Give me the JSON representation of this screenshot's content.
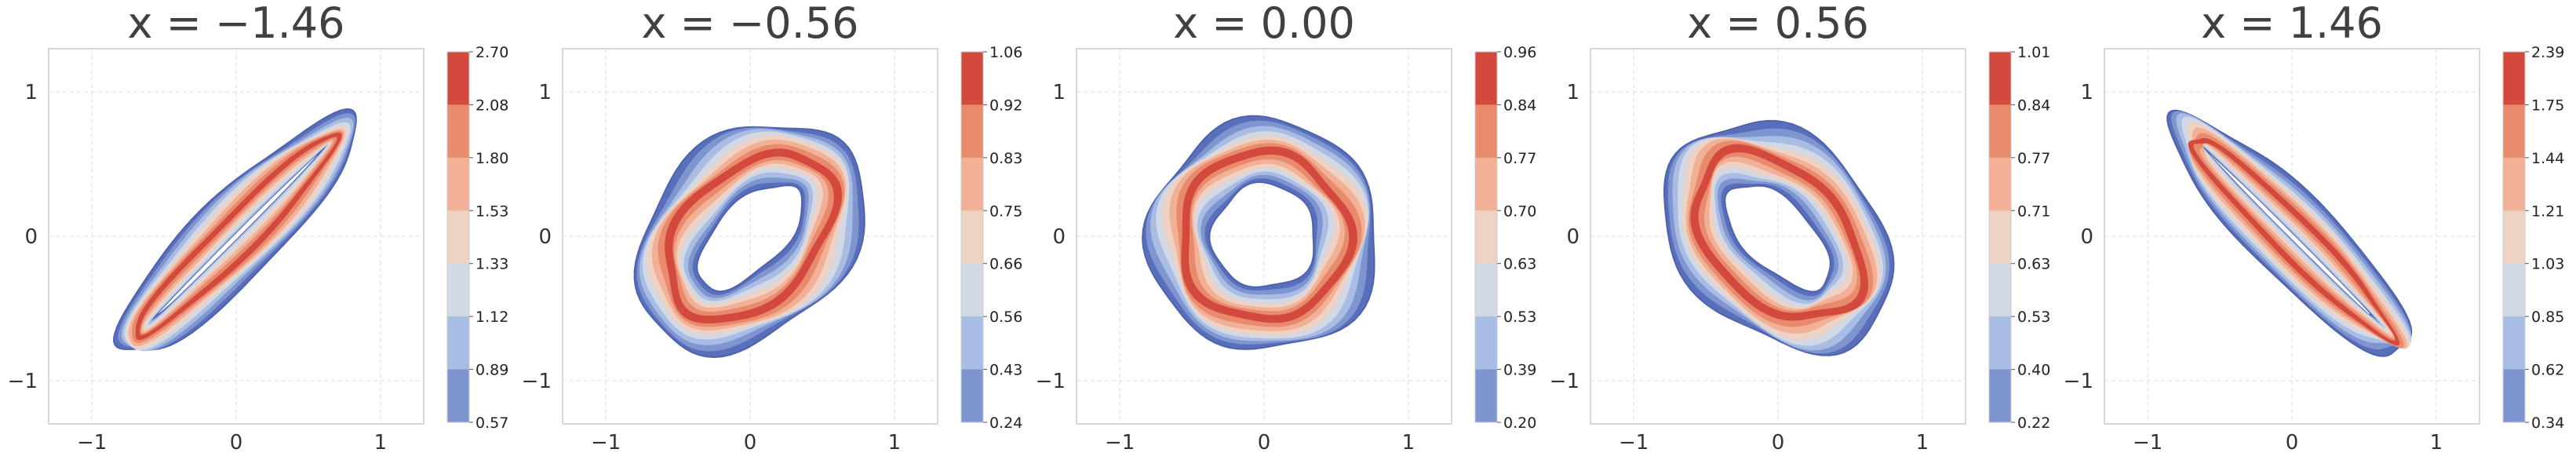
{
  "chart_data": [
    {
      "type": "contour",
      "title": "x = −1.46",
      "title_value": -1.46,
      "x_ticks": [
        "−1",
        "0",
        "1"
      ],
      "y_ticks": [
        "−1",
        "0",
        "1"
      ],
      "xlim": [
        -1.3,
        1.3
      ],
      "ylim": [
        -1.3,
        1.3
      ],
      "grid": true,
      "shape": {
        "kind": "stretched-ring",
        "angle_deg": 45,
        "major": 0.98,
        "minor": 0.13
      },
      "colorbar_levels": [
        "2.70",
        "2.08",
        "1.80",
        "1.53",
        "1.33",
        "1.12",
        "0.89",
        "0.57"
      ]
    },
    {
      "type": "contour",
      "title": "x = −0.56",
      "title_value": -0.56,
      "x_ticks": [
        "−1",
        "0",
        "1"
      ],
      "y_ticks": [
        "−1",
        "0",
        "1"
      ],
      "xlim": [
        -1.3,
        1.3
      ],
      "ylim": [
        -1.3,
        1.3
      ],
      "grid": true,
      "shape": {
        "kind": "ring",
        "angle_deg": 45,
        "major": 0.68,
        "minor": 0.45
      },
      "colorbar_levels": [
        "1.06",
        "0.92",
        "0.83",
        "0.75",
        "0.66",
        "0.56",
        "0.43",
        "0.24"
      ]
    },
    {
      "type": "contour",
      "title": "x = 0.00",
      "title_value": 0.0,
      "x_ticks": [
        "−1",
        "0",
        "1"
      ],
      "y_ticks": [
        "−1",
        "0",
        "1"
      ],
      "xlim": [
        -1.3,
        1.3
      ],
      "ylim": [
        -1.3,
        1.3
      ],
      "grid": true,
      "shape": {
        "kind": "ring",
        "angle_deg": 45,
        "major": 0.58,
        "minor": 0.58
      },
      "colorbar_levels": [
        "0.96",
        "0.84",
        "0.77",
        "0.70",
        "0.63",
        "0.53",
        "0.39",
        "0.20"
      ]
    },
    {
      "type": "contour",
      "title": "x = 0.56",
      "title_value": 0.56,
      "x_ticks": [
        "−1",
        "0",
        "1"
      ],
      "y_ticks": [
        "−1",
        "0",
        "1"
      ],
      "xlim": [
        -1.3,
        1.3
      ],
      "ylim": [
        -1.3,
        1.3
      ],
      "grid": true,
      "shape": {
        "kind": "ring",
        "angle_deg": -45,
        "major": 0.68,
        "minor": 0.45
      },
      "colorbar_levels": [
        "1.01",
        "0.84",
        "0.77",
        "0.71",
        "0.63",
        "0.53",
        "0.40",
        "0.22"
      ]
    },
    {
      "type": "contour",
      "title": "x = 1.46",
      "title_value": 1.46,
      "x_ticks": [
        "−1",
        "0",
        "1"
      ],
      "y_ticks": [
        "−1",
        "0",
        "1"
      ],
      "xlim": [
        -1.3,
        1.3
      ],
      "ylim": [
        -1.3,
        1.3
      ],
      "grid": true,
      "shape": {
        "kind": "stretched-ring",
        "angle_deg": -45,
        "major": 0.98,
        "minor": 0.13
      },
      "colorbar_levels": [
        "2.39",
        "1.75",
        "1.44",
        "1.21",
        "1.03",
        "0.85",
        "0.62",
        "0.34"
      ]
    }
  ],
  "colormap": [
    "#5a6fba",
    "#7e95d0",
    "#a9bde4",
    "#d2d9e4",
    "#eed2c3",
    "#f2b096",
    "#e88a6c",
    "#d4493d"
  ]
}
